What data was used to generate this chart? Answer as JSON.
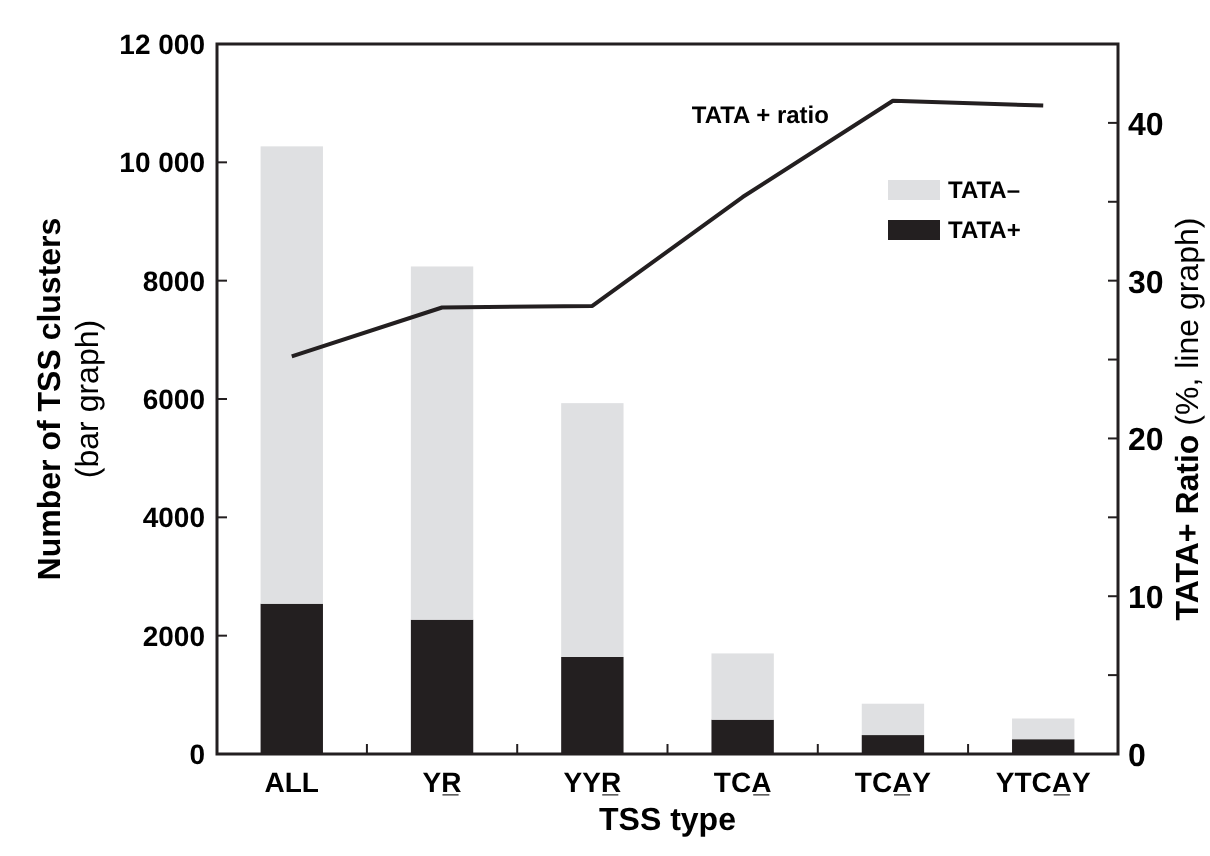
{
  "chart_data": {
    "type": "bar",
    "stacked": true,
    "xlabel": "TSS type",
    "ylabel": "Number of TSS clusters\n(bar graph)",
    "y2label": "TATA+ Ratio (%, line graph)",
    "categories": [
      "ALL",
      "YR̲",
      "YYR̲",
      "TCA̲",
      "TCA̲Y",
      "YTCA̲Y"
    ],
    "series": [
      {
        "name": "TATA+",
        "color": "#231f20",
        "values": [
          2540,
          2270,
          1640,
          580,
          320,
          250
        ]
      },
      {
        "name": "TATA–",
        "color": "#dfe0e2",
        "values": [
          7730,
          5970,
          4290,
          1120,
          530,
          350
        ]
      },
      {
        "name": "TATA + ratio",
        "type": "line",
        "axis": "y2",
        "color": "#231f20",
        "values": [
          25.2,
          28.3,
          28.4,
          35.3,
          41.4,
          41.1
        ]
      }
    ],
    "ylim": [
      0,
      12000
    ],
    "yticks": [
      0,
      2000,
      4000,
      6000,
      8000,
      {
        "value": 10000,
        "label": "10 000"
      },
      {
        "value": 12000,
        "label": "12 000"
      }
    ],
    "y2lim": [
      0,
      45
    ],
    "y2ticks": [
      0,
      {
        "value": 5,
        "label": null
      },
      10,
      {
        "value": 15,
        "label": null
      },
      20,
      {
        "value": 25,
        "label": null
      },
      30,
      {
        "value": 35,
        "label": null
      },
      40
    ],
    "legend": "top right",
    "grid": false,
    "marker": "none",
    "line_style": "solid"
  }
}
